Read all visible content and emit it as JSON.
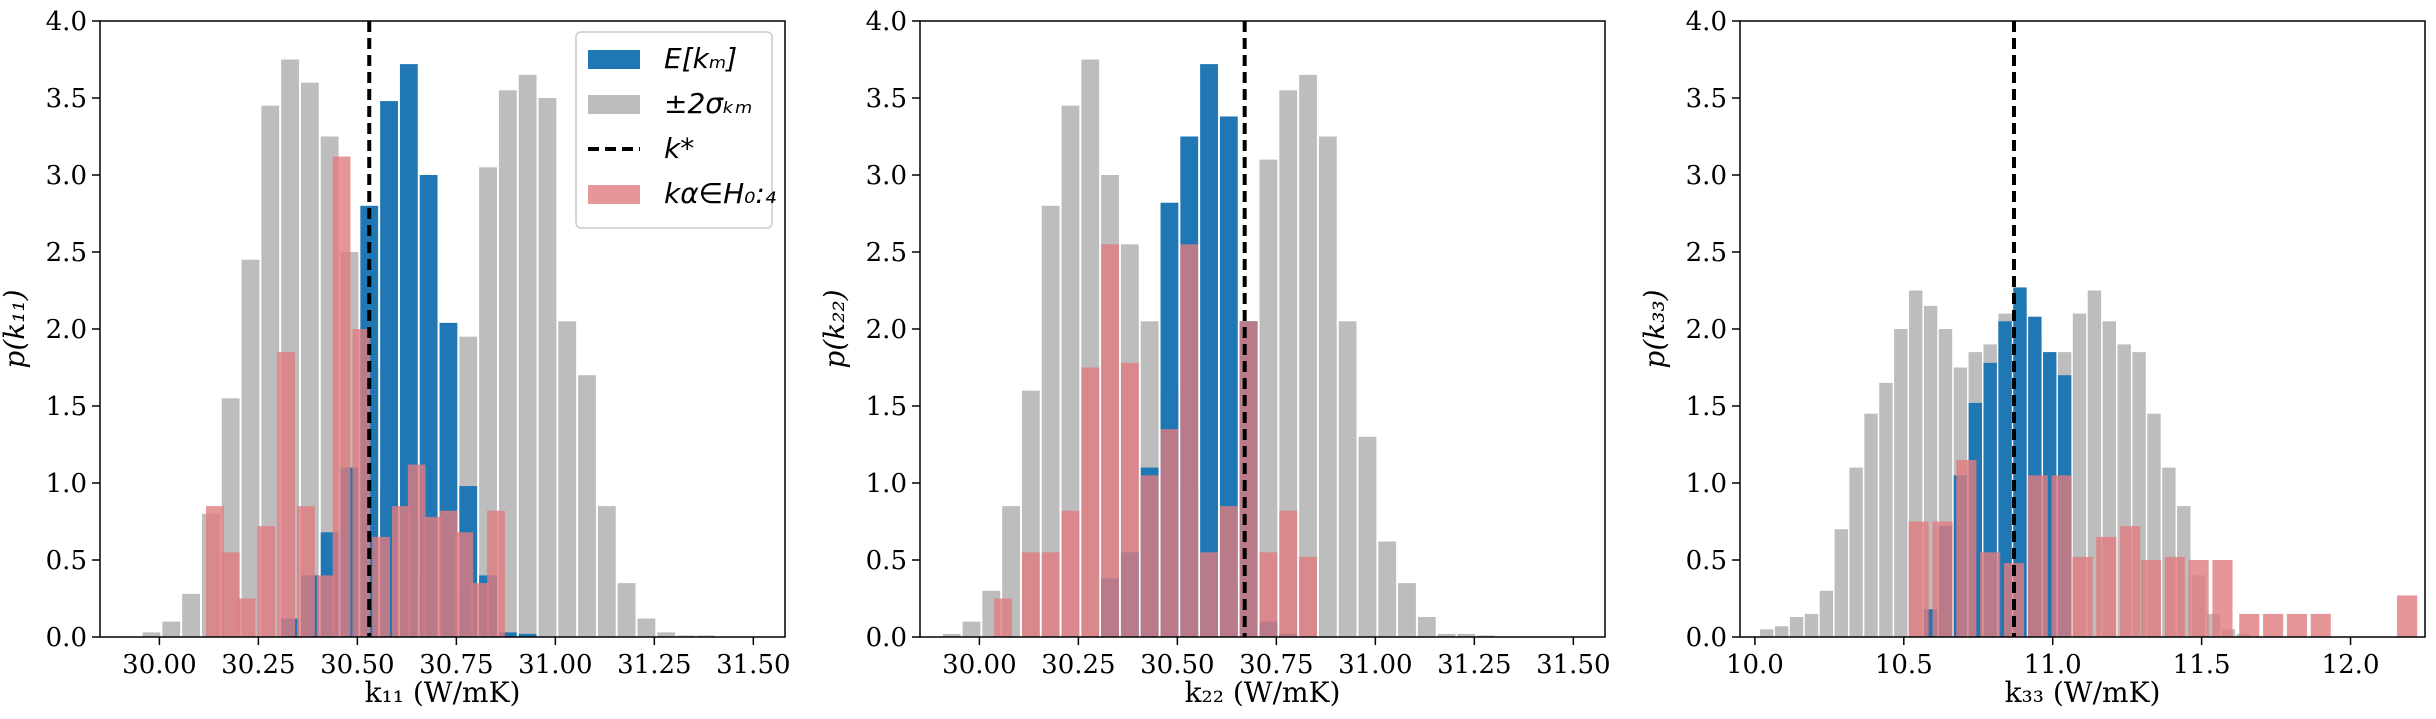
{
  "colors": {
    "mean": "#1f77b4",
    "sigma": "#bdbdbd",
    "samples": "#e07a80",
    "kstar": "#000000"
  },
  "legend": {
    "mean_label": "E[kₘ]",
    "sigma_label": "±2σₖₘ",
    "kstar_label": "k*",
    "samples_label": "kα∈H₀:₄"
  },
  "chart_data": [
    {
      "type": "bar",
      "xlabel": "k₁₁ (W/mK)",
      "ylabel": "p(k₁₁)",
      "xlim": [
        29.85,
        31.58
      ],
      "ylim": [
        0,
        4.0
      ],
      "xticks": [
        30.0,
        30.25,
        30.5,
        30.75,
        31.0,
        31.25,
        31.5
      ],
      "xtick_labels": [
        "30.00",
        "30.25",
        "30.50",
        "30.75",
        "31.00",
        "31.25",
        "31.50"
      ],
      "yticks": [
        0.0,
        0.5,
        1.0,
        1.5,
        2.0,
        2.5,
        3.0,
        3.5,
        4.0
      ],
      "ytick_labels": [
        "0.0",
        "0.5",
        "1.0",
        "1.5",
        "2.0",
        "2.5",
        "3.0",
        "3.5",
        "4.0"
      ],
      "kstar": 30.53,
      "series": [
        {
          "name": "±2σkm",
          "role": "sigma",
          "bin_width": 0.05,
          "x": [
            29.98,
            30.03,
            30.08,
            30.13,
            30.18,
            30.23,
            30.28,
            30.33,
            30.38,
            30.43,
            30.48,
            30.53,
            30.58,
            30.63,
            30.68,
            30.73,
            30.78,
            30.83,
            30.88,
            30.93,
            30.98,
            31.03,
            31.08,
            31.13,
            31.18,
            31.23,
            31.28,
            31.33,
            31.38,
            31.43,
            31.48
          ],
          "y": [
            0.03,
            0.1,
            0.28,
            0.8,
            1.55,
            2.45,
            3.45,
            3.75,
            3.6,
            3.25,
            2.5,
            1.75,
            0.95,
            0.6,
            0.4,
            0.3,
            1.95,
            3.05,
            3.55,
            3.65,
            3.5,
            2.05,
            1.7,
            0.85,
            0.35,
            0.12,
            0.03,
            0.01,
            0.01,
            0.0,
            0.0
          ]
        },
        {
          "name": "E[km]",
          "role": "mean",
          "bin_width": 0.05,
          "x": [
            30.33,
            30.38,
            30.43,
            30.48,
            30.53,
            30.58,
            30.63,
            30.68,
            30.73,
            30.78,
            30.83,
            30.88,
            30.93
          ],
          "y": [
            0.12,
            0.4,
            0.68,
            1.1,
            2.8,
            3.48,
            3.72,
            3.0,
            2.04,
            0.98,
            0.4,
            0.03,
            0.02
          ]
        },
        {
          "name": "kα∈H0:4",
          "role": "samples",
          "bin_width": 0.05,
          "x": [
            30.14,
            30.18,
            30.22,
            30.27,
            30.32,
            30.37,
            30.42,
            30.46,
            30.51,
            30.56,
            30.61,
            30.65,
            30.69,
            30.73,
            30.77,
            30.81,
            30.85
          ],
          "y": [
            0.85,
            0.55,
            0.25,
            0.72,
            1.85,
            0.85,
            0.4,
            3.12,
            2.0,
            0.65,
            0.85,
            1.12,
            0.78,
            0.82,
            0.68,
            0.35,
            0.82
          ]
        }
      ]
    },
    {
      "type": "bar",
      "xlabel": "k₂₂ (W/mK)",
      "ylabel": "p(k₂₂)",
      "xlim": [
        29.85,
        31.58
      ],
      "ylim": [
        0,
        4.0
      ],
      "xticks": [
        30.0,
        30.25,
        30.5,
        30.75,
        31.0,
        31.25,
        31.5
      ],
      "xtick_labels": [
        "30.00",
        "30.25",
        "30.50",
        "30.75",
        "31.00",
        "31.25",
        "31.50"
      ],
      "yticks": [
        0.0,
        0.5,
        1.0,
        1.5,
        2.0,
        2.5,
        3.0,
        3.5,
        4.0
      ],
      "ytick_labels": [
        "0.0",
        "0.5",
        "1.0",
        "1.5",
        "2.0",
        "2.5",
        "3.0",
        "3.5",
        "4.0"
      ],
      "kstar": 30.67,
      "series": [
        {
          "name": "±2σkm",
          "role": "sigma",
          "bin_width": 0.05,
          "x": [
            29.93,
            29.98,
            30.03,
            30.08,
            30.13,
            30.18,
            30.23,
            30.28,
            30.33,
            30.38,
            30.43,
            30.48,
            30.53,
            30.58,
            30.63,
            30.68,
            30.73,
            30.78,
            30.83,
            30.88,
            30.93,
            30.98,
            31.03,
            31.08,
            31.13,
            31.18,
            31.23,
            31.28,
            31.33,
            31.38,
            31.43,
            31.48
          ],
          "y": [
            0.02,
            0.1,
            0.3,
            0.85,
            1.6,
            2.8,
            3.45,
            3.75,
            3.0,
            2.55,
            2.05,
            1.6,
            0.95,
            0.55,
            0.35,
            2.05,
            3.1,
            3.55,
            3.65,
            3.25,
            2.05,
            1.3,
            0.62,
            0.35,
            0.13,
            0.02,
            0.02,
            0.01,
            0.0,
            0.0,
            0.0,
            0.0
          ]
        },
        {
          "name": "E[km]",
          "role": "mean",
          "bin_width": 0.05,
          "x": [
            30.33,
            30.38,
            30.43,
            30.48,
            30.53,
            30.58,
            30.63,
            30.68,
            30.73,
            30.78
          ],
          "y": [
            0.38,
            0.55,
            1.1,
            2.82,
            3.25,
            3.72,
            3.38,
            2.05,
            0.1,
            0.02
          ]
        },
        {
          "name": "kα∈H0:4",
          "role": "samples",
          "bin_width": 0.05,
          "x": [
            30.06,
            30.13,
            30.18,
            30.23,
            30.28,
            30.33,
            30.38,
            30.43,
            30.48,
            30.53,
            30.58,
            30.63,
            30.68,
            30.73,
            30.78,
            30.83
          ],
          "y": [
            0.25,
            0.55,
            0.55,
            0.82,
            1.75,
            2.55,
            1.78,
            1.05,
            1.35,
            2.55,
            0.55,
            0.85,
            2.05,
            0.55,
            0.82,
            0.52
          ]
        }
      ]
    },
    {
      "type": "bar",
      "xlabel": "k₃₃ (W/mK)",
      "ylabel": "p(k₃₃)",
      "xlim": [
        9.95,
        12.25
      ],
      "ylim": [
        0,
        4.0
      ],
      "xticks": [
        10.0,
        10.5,
        11.0,
        11.5,
        12.0
      ],
      "xtick_labels": [
        "10.0",
        "10.5",
        "11.0",
        "11.5",
        "12.0"
      ],
      "yticks": [
        0.0,
        0.5,
        1.0,
        1.5,
        2.0,
        2.5,
        3.0,
        3.5,
        4.0
      ],
      "ytick_labels": [
        "0.0",
        "0.5",
        "1.0",
        "1.5",
        "2.0",
        "2.5",
        "3.0",
        "3.5",
        "4.0"
      ],
      "kstar": 10.87,
      "series": [
        {
          "name": "±2σkm",
          "role": "sigma",
          "bin_width": 0.05,
          "x": [
            10.04,
            10.09,
            10.14,
            10.19,
            10.24,
            10.29,
            10.34,
            10.39,
            10.44,
            10.49,
            10.54,
            10.59,
            10.64,
            10.69,
            10.74,
            10.79,
            10.84,
            10.89,
            10.94,
            10.99,
            11.04,
            11.09,
            11.14,
            11.19,
            11.24,
            11.29,
            11.34,
            11.39,
            11.44,
            11.49,
            11.54,
            11.59,
            11.64
          ],
          "y": [
            0.05,
            0.07,
            0.13,
            0.15,
            0.3,
            0.7,
            1.1,
            1.45,
            1.65,
            2.0,
            2.25,
            2.15,
            2.0,
            1.75,
            1.85,
            1.9,
            2.1,
            2.15,
            1.95,
            1.8,
            1.85,
            2.1,
            2.25,
            2.05,
            1.9,
            1.85,
            1.45,
            1.1,
            0.85,
            0.4,
            0.15,
            0.05,
            0.02
          ]
        },
        {
          "name": "E[km]",
          "role": "mean",
          "bin_width": 0.05,
          "x": [
            10.59,
            10.64,
            10.69,
            10.74,
            10.79,
            10.84,
            10.89,
            10.94,
            10.99,
            11.04
          ],
          "y": [
            0.18,
            0.72,
            1.05,
            1.52,
            1.78,
            2.05,
            2.27,
            2.08,
            1.85,
            1.7
          ]
        },
        {
          "name": "kα∈H0:4",
          "role": "samples",
          "bin_width": 0.075,
          "x": [
            10.55,
            10.63,
            10.71,
            10.79,
            10.87,
            10.95,
            11.03,
            11.1,
            11.18,
            11.26,
            11.33,
            11.41,
            11.49,
            11.57,
            11.66,
            11.74,
            11.82,
            11.9,
            12.19
          ],
          "y": [
            0.75,
            0.75,
            1.15,
            0.55,
            0.48,
            1.05,
            1.05,
            0.52,
            0.65,
            0.72,
            0.5,
            0.52,
            0.5,
            0.5,
            0.15,
            0.15,
            0.15,
            0.15,
            0.27
          ]
        }
      ]
    }
  ]
}
